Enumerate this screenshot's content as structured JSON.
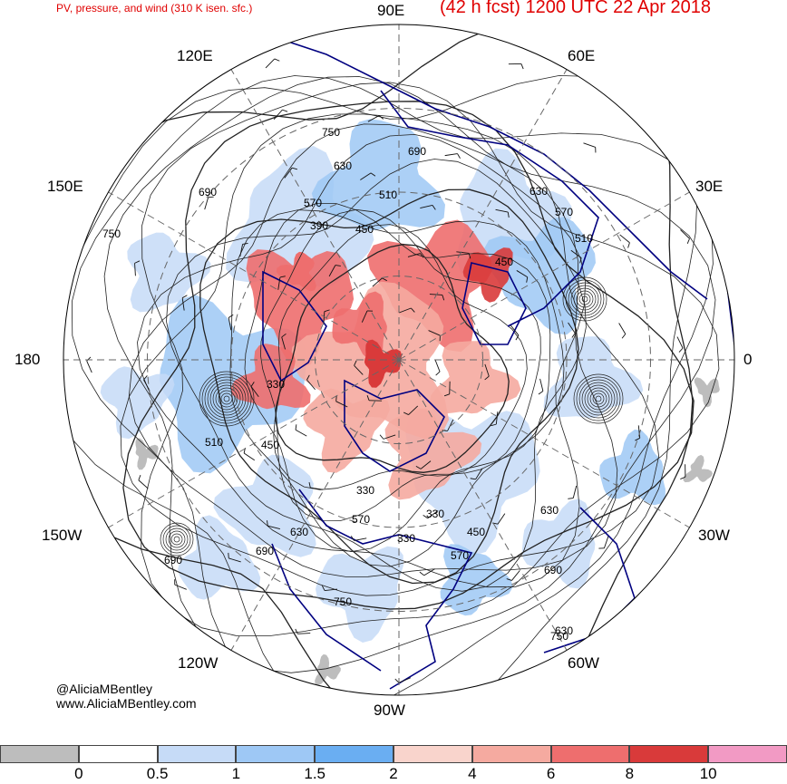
{
  "header": {
    "subtitle": "PV, pressure, and wind (310 K isen. sfc.)",
    "title": "(42 h fcst) 1200 UTC 22 Apr 2018"
  },
  "longitude_labels": {
    "lon_90e": "90E",
    "lon_60e": "60E",
    "lon_120e": "120E",
    "lon_30e": "30E",
    "lon_150e": "150E",
    "lon_180": "180",
    "lon_0": "0",
    "lon_150w": "150W",
    "lon_30w": "30W",
    "lon_120w": "120W",
    "lon_60w": "60W",
    "lon_90w": "90W"
  },
  "pressure_labels": [
    "750",
    "690",
    "630",
    "570",
    "510",
    "450",
    "390",
    "330",
    "750",
    "690",
    "630",
    "570",
    "510",
    "450",
    "330",
    "330",
    "330",
    "450",
    "570",
    "630",
    "690",
    "750",
    "630",
    "690",
    "510",
    "450",
    "570",
    "630",
    "690",
    "750"
  ],
  "credit": {
    "handle": "@AliciaMBentley",
    "site": "www.AliciaMBentley.com"
  },
  "colorbar": {
    "tick_labels": [
      "0",
      "0.5",
      "1",
      "1.5",
      "2",
      "4",
      "6",
      "8",
      "10"
    ],
    "bins": [
      {
        "range": "<0",
        "color": "#bdbdbd"
      },
      {
        "range": "0-0.5",
        "color": "#ffffff"
      },
      {
        "range": "0.5-1",
        "color": "#c6dbf7"
      },
      {
        "range": "1-1.5",
        "color": "#9ec8f5"
      },
      {
        "range": "1.5-2",
        "color": "#6aaef2"
      },
      {
        "range": "2-4",
        "color": "#f9d4cc"
      },
      {
        "range": "4-6",
        "color": "#f5aaa0"
      },
      {
        "range": "6-8",
        "color": "#ee6e6e"
      },
      {
        "range": "8-10",
        "color": "#d93a3a"
      },
      {
        "range": ">10",
        "color": "#f29ac4"
      }
    ]
  },
  "colors": {
    "title_red": "#e00000",
    "coastline": "#000080",
    "contour": "#222222",
    "grid": "#666666"
  }
}
